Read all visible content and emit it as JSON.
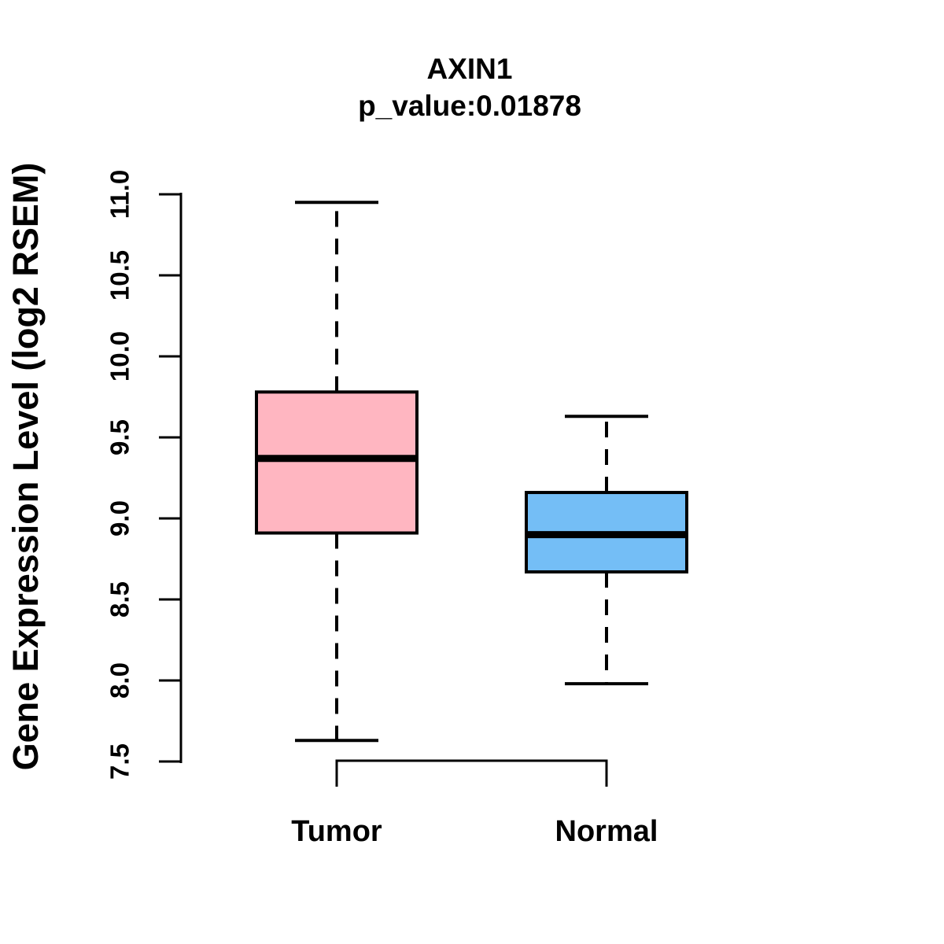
{
  "title": "AXIN1",
  "subtitle": "p_value:0.01878",
  "chart_data": {
    "type": "boxplot",
    "title": "AXIN1",
    "subtitle": "p_value:0.01878",
    "p_value": 0.01878,
    "xlabel": "",
    "ylabel": "Gene Expression Level (log2 RSEM)",
    "ylim": [
      7.5,
      11.0
    ],
    "y_ticks": [
      7.5,
      8.0,
      8.5,
      9.0,
      9.5,
      10.0,
      10.5,
      11.0
    ],
    "grid": false,
    "legend": "none",
    "categories": [
      "Tumor",
      "Normal"
    ],
    "series": [
      {
        "name": "Tumor",
        "color": "#FFB6C1",
        "lower_whisker": 7.63,
        "q1": 8.91,
        "median": 9.37,
        "q3": 9.78,
        "upper_whisker": 10.95,
        "outliers": []
      },
      {
        "name": "Normal",
        "color": "#74BEF6",
        "lower_whisker": 7.98,
        "q1": 8.67,
        "median": 8.9,
        "q3": 9.16,
        "upper_whisker": 9.63,
        "outliers": []
      }
    ]
  }
}
